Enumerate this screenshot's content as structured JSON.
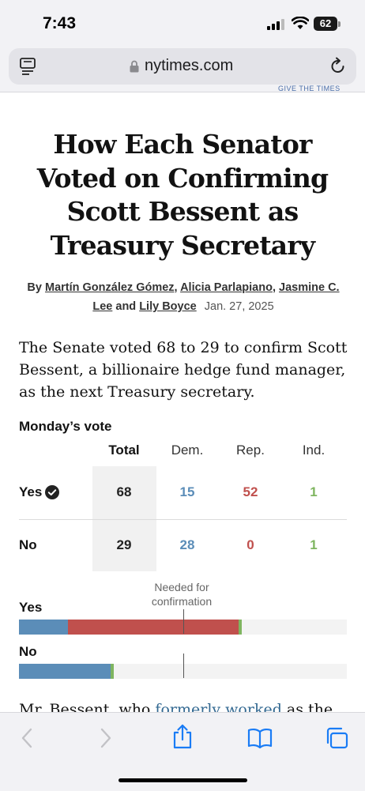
{
  "status_bar": {
    "time": "7:43",
    "battery": "62",
    "icons": [
      "signal-icon",
      "wifi-icon",
      "battery-icon"
    ]
  },
  "browser": {
    "url": "nytimes.com",
    "top_cut_text": "GIVE THE TIMES",
    "icons": [
      "reader-mode-icon",
      "lock-icon",
      "reload-icon"
    ]
  },
  "article": {
    "headline": [
      "How Each Senator",
      "Voted on Confirming",
      "Scott Bessent as",
      "Treasury Secretary"
    ],
    "byline": {
      "by": "By",
      "authors": [
        "Martín González Gómez",
        "Alicia Parlapiano",
        "Jasmine C. Lee",
        "Lily Boyce"
      ],
      "sep1": ",",
      "sep2": ",",
      "and": "and",
      "date": "Jan. 27, 2025"
    },
    "lede": "The Senate voted 68 to 29 to confirm Scott Bessent, a billionaire hedge fund manager, as the next Treasury secretary.",
    "cut_text_before": "Mr. Bessent, who ",
    "cut_link": "formerly worked",
    "cut_text_after": " as the"
  },
  "vote_table": {
    "title": "Monday’s vote",
    "columns": [
      "Total",
      "Dem.",
      "Rep.",
      "Ind."
    ],
    "rows": [
      {
        "label": "Yes",
        "total": "68",
        "dem": "15",
        "rep": "52",
        "ind": "1"
      },
      {
        "label": "No",
        "total": "29",
        "dem": "28",
        "rep": "0",
        "ind": "1"
      }
    ]
  },
  "colors": {
    "dem": "#5b8db8",
    "rep": "#c0504d",
    "ind": "#7fb560"
  },
  "bar_chart": {
    "threshold_label": "Needed for confirmation",
    "threshold": 50,
    "max": 100,
    "bars": [
      {
        "label": "Yes",
        "dem": 15,
        "rep": 52,
        "ind": 1
      },
      {
        "label": "No",
        "dem": 28,
        "rep": 0,
        "ind": 1
      }
    ]
  },
  "toolbar": {
    "buttons": [
      "back-icon",
      "forward-icon",
      "share-icon",
      "bookmarks-icon",
      "tabs-icon"
    ]
  }
}
